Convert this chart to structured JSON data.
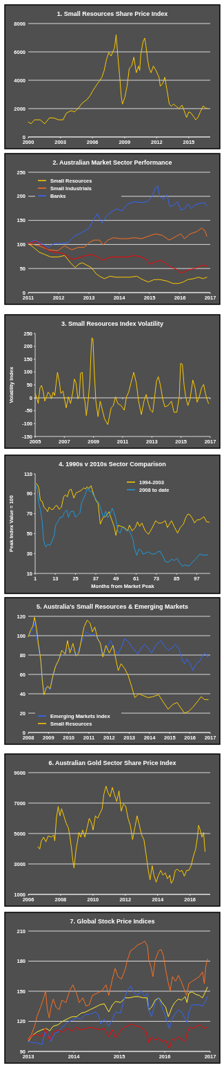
{
  "chart_data": [
    {
      "type": "line",
      "title": "1. Small Resources Share Price Index",
      "xlim": [
        2000,
        2017
      ],
      "xticks": [
        2000,
        2003,
        2006,
        2009,
        2012,
        2015
      ],
      "ylim": [
        0,
        8000
      ],
      "yticks": [
        0,
        2000,
        4000,
        6000,
        8000
      ],
      "grid": "y",
      "series": [
        {
          "color": "#ffcc00",
          "x": [
            2000,
            2000.26,
            2000.58,
            2001.11,
            2001.54,
            2001.97,
            2002.39,
            2002.82,
            2003.25,
            2003.57,
            2004,
            2004.32,
            2004.64,
            2005.06,
            2005.49,
            2005.81,
            2006.03,
            2006.24,
            2006.45,
            2006.67,
            2006.88,
            2007.09,
            2007.31,
            2007.52,
            2007.74,
            2007.95,
            2008.06,
            2008.21,
            2008.38,
            2008.53,
            2008.7,
            2008.8,
            2009.02,
            2009.23,
            2009.44,
            2009.66,
            2009.87,
            2010.09,
            2010.3,
            2010.41,
            2010.51,
            2010.73,
            2010.88,
            2011,
            2011.15,
            2011.3,
            2011.47,
            2011.69,
            2011.94,
            2012.22,
            2012.33,
            2012.54,
            2012.76,
            2012.97,
            2013.18,
            2013.35,
            2013.57,
            2013.82,
            2014.08,
            2014.36,
            2014.57,
            2014.79,
            2015,
            2015.21,
            2015.43,
            2015.64,
            2015.85,
            2016.07,
            2016.35,
            2016.5,
            2016.71
          ],
          "values": [
            1060,
            930,
            1210,
            1210,
            930,
            1340,
            1340,
            1210,
            1210,
            1690,
            1850,
            1770,
            2000,
            2400,
            2630,
            2950,
            3260,
            3500,
            3740,
            3970,
            4210,
            4680,
            5470,
            5950,
            5710,
            6100,
            6260,
            7210,
            5630,
            4370,
            2790,
            2320,
            2790,
            3580,
            4840,
            5000,
            5630,
            4530,
            5000,
            4680,
            5790,
            6730,
            6970,
            6420,
            5470,
            4840,
            4530,
            5000,
            4680,
            4210,
            3580,
            3740,
            4210,
            3260,
            2320,
            2160,
            2320,
            2160,
            2000,
            2240,
            1850,
            1370,
            1770,
            1690,
            1450,
            1210,
            1370,
            1770,
            2190,
            2080,
            2000
          ]
        }
      ]
    },
    {
      "type": "line",
      "title": "2. Australian Market Sector Performance",
      "xlim": [
        2011,
        2017
      ],
      "xticks": [
        2011,
        2012,
        2013,
        2014,
        2015,
        2016,
        2017
      ],
      "ylim": [
        0,
        250
      ],
      "yticks": [
        0,
        50,
        100,
        150,
        200,
        250
      ],
      "grid": "y",
      "legend": "top left",
      "series": [
        {
          "name": "Small Resources",
          "color": "#ffcc00",
          "x": [
            2011,
            2011.17,
            2011.36,
            2011.55,
            2011.74,
            2011.97,
            2012.2,
            2012.39,
            2012.55,
            2012.66,
            2012.78,
            2012.93,
            2013.08,
            2013.24,
            2013.35,
            2013.51,
            2013.7,
            2013.89,
            2014.12,
            2014.35,
            2014.58,
            2014.77,
            2014.96,
            2015.15,
            2015.34,
            2015.57,
            2015.77,
            2015.96,
            2016.11,
            2016.26,
            2016.46,
            2016.61,
            2016.76,
            2016.89
          ],
          "values": [
            102,
            94,
            84,
            79,
            74,
            74,
            77,
            62,
            52,
            59,
            62,
            57,
            52,
            39,
            34,
            29,
            34,
            32,
            32,
            32,
            34,
            27,
            22,
            27,
            27,
            24,
            19,
            19,
            22,
            27,
            29,
            32,
            29,
            32
          ]
        },
        {
          "name": "Small Industrials",
          "color": "#ff7020",
          "x": [
            2011,
            2011.36,
            2011.67,
            2011.97,
            2012.2,
            2012.43,
            2012.66,
            2012.85,
            2013.01,
            2013.16,
            2013.35,
            2013.47,
            2013.62,
            2013.81,
            2014.04,
            2014.27,
            2014.5,
            2014.73,
            2014.96,
            2015.19,
            2015.42,
            2015.65,
            2015.88,
            2016.03,
            2016.15,
            2016.34,
            2016.57,
            2016.72,
            2016.82,
            2016.89
          ],
          "values": [
            102,
            97,
            89,
            87,
            97,
            89,
            94,
            94,
            104,
            109,
            109,
            99,
            109,
            114,
            112,
            112,
            114,
            112,
            117,
            122,
            119,
            109,
            117,
            122,
            112,
            122,
            127,
            134,
            129,
            117
          ]
        },
        {
          "name": "Banks",
          "color": "#3366ff",
          "x": [
            2011,
            2011.21,
            2011.44,
            2011.67,
            2011.86,
            2012.09,
            2012.32,
            2012.51,
            2012.74,
            2012.89,
            2013.01,
            2013.16,
            2013.28,
            2013.35,
            2013.43,
            2013.58,
            2013.77,
            2013.93,
            2014.08,
            2014.27,
            2014.5,
            2014.73,
            2014.92,
            2015.08,
            2015.19,
            2015.27,
            2015.34,
            2015.46,
            2015.57,
            2015.67,
            2015.8,
            2015.92,
            2016.03,
            2016.15,
            2016.26,
            2016.38,
            2016.49,
            2016.65,
            2016.8,
            2016.89
          ],
          "values": [
            102,
            109,
            102,
            94,
            102,
            102,
            104,
            117,
            124,
            129,
            134,
            152,
            164,
            154,
            144,
            159,
            169,
            174,
            169,
            184,
            189,
            187,
            189,
            199,
            217,
            222,
            199,
            194,
            204,
            179,
            182,
            189,
            172,
            174,
            184,
            174,
            182,
            185,
            187,
            180
          ]
        },
        {
          "color": "#ff0000",
          "x": [
            2011,
            2011.25,
            2011.44,
            2011.67,
            2011.86,
            2012.09,
            2012.28,
            2012.43,
            2012.66,
            2012.89,
            2013.12,
            2013.28,
            2013.47,
            2013.62,
            2013.81,
            2014.04,
            2014.27,
            2014.5,
            2014.73,
            2014.89,
            2015,
            2015.19,
            2015.38,
            2015.57,
            2015.73,
            2015.88,
            2016,
            2016.11,
            2016.26,
            2016.42,
            2016.57,
            2016.76,
            2016.89
          ],
          "values": [
            102,
            107,
            99,
            87,
            84,
            82,
            77,
            69,
            72,
            77,
            79,
            74,
            67,
            72,
            74,
            74,
            74,
            77,
            74,
            69,
            59,
            64,
            67,
            59,
            52,
            49,
            42,
            42,
            47,
            49,
            52,
            57,
            55
          ]
        }
      ]
    },
    {
      "type": "line",
      "title": "3. Small Resources Index Volatility",
      "ylabel": "Volatility Index",
      "xlim": [
        2005,
        2017
      ],
      "xticks": [
        2005,
        2007,
        2009,
        2011,
        2013,
        2015,
        2017
      ],
      "ylim": [
        -150,
        250
      ],
      "yticks": [
        -150,
        -100,
        -50,
        0,
        50,
        100,
        150,
        200,
        250
      ],
      "ref_lines": [
        {
          "axis": "y",
          "value": 0,
          "color": "#ffffff"
        }
      ],
      "series": [
        {
          "color": "#ffcc00",
          "x": [
            2005,
            2005.11,
            2005.21,
            2005.33,
            2005.44,
            2005.56,
            2005.66,
            2005.78,
            2005.89,
            2006.01,
            2006.11,
            2006.23,
            2006.34,
            2006.44,
            2006.53,
            2006.65,
            2006.76,
            2006.91,
            2007.01,
            2007.13,
            2007.28,
            2007.43,
            2007.58,
            2007.69,
            2007.81,
            2007.93,
            2008.03,
            2008.11,
            2008.23,
            2008.33,
            2008.41,
            2008.51,
            2008.63,
            2008.75,
            2008.83,
            2008.89,
            2008.96,
            2009.05,
            2009.16,
            2009.31,
            2009.46,
            2009.61,
            2009.76,
            2009.98,
            2010.21,
            2010.36,
            2010.51,
            2010.66,
            2010.89,
            2011.11,
            2011.26,
            2011.41,
            2011.56,
            2011.76,
            2011.94,
            2012.09,
            2012.28,
            2012.46,
            2012.61,
            2012.76,
            2012.91,
            2013.06,
            2013.21,
            2013.32,
            2013.44,
            2013.59,
            2013.74,
            2013.89,
            2014.11,
            2014.34,
            2014.52,
            2014.71,
            2014.88,
            2014.97,
            2015.09,
            2015.21,
            2015.32,
            2015.47,
            2015.62,
            2015.81,
            2015.96,
            2016.1,
            2016.25,
            2016.41,
            2016.55,
            2016.67,
            2016.82,
            2016.89
          ],
          "values": [
            17,
            0,
            -22,
            39,
            48,
            22,
            -13,
            4,
            22,
            13,
            -4,
            22,
            9,
            56,
            99,
            65,
            17,
            26,
            -4,
            -39,
            4,
            -22,
            22,
            73,
            56,
            -4,
            9,
            95,
            99,
            4,
            -13,
            -69,
            -13,
            65,
            177,
            233,
            229,
            108,
            -13,
            -73,
            -13,
            -48,
            -82,
            -104,
            -39,
            -30,
            4,
            -22,
            -30,
            -48,
            4,
            22,
            56,
            99,
            56,
            -13,
            -65,
            -13,
            13,
            -22,
            -48,
            -56,
            13,
            65,
            82,
            48,
            -4,
            -35,
            -30,
            -13,
            -56,
            -56,
            4,
            134,
            130,
            48,
            4,
            -30,
            -4,
            69,
            39,
            -17,
            4,
            39,
            52,
            17,
            -13,
            -22
          ]
        }
      ]
    },
    {
      "type": "line",
      "title": "4. 1990s v 2010s Sector Comparison",
      "xlabel": "Months from Market Peak",
      "ylabel": "Peak Index Value = 100",
      "xlim": [
        1,
        105
      ],
      "xticks": [
        1,
        13,
        25,
        37,
        49,
        61,
        73,
        85,
        97
      ],
      "ylim": [
        10,
        110
      ],
      "yticks": [
        10,
        30,
        50,
        70,
        90,
        110
      ],
      "legend": "top right",
      "series": [
        {
          "name": "1994-2003",
          "color": "#ffcc00",
          "x": [
            1,
            2.3,
            3.2,
            4.1,
            5.2,
            6.2,
            7.5,
            8.4,
            9.3,
            10.6,
            11.7,
            13,
            14,
            15.3,
            16.6,
            17.9,
            19,
            20.1,
            21.3,
            22.4,
            24,
            25.3,
            26.6,
            28.6,
            29.9,
            30.9,
            31.8,
            33.1,
            34.2,
            35.8,
            37.1,
            38.4,
            39.7,
            41.4,
            42.9,
            44.9,
            46.2,
            47.9,
            49,
            50.3,
            52,
            54,
            55.9,
            57,
            58.6,
            60.5,
            61.8,
            63.1,
            64.4,
            66.4,
            68.3,
            70.3,
            72.6,
            74.2,
            76.1,
            78.3,
            79.6,
            82,
            83.9,
            85.6,
            87.2,
            89.1,
            90.5,
            91.8,
            93.1,
            94.4,
            95.7,
            97,
            98.9,
            101.3,
            102.8,
            104.4
          ],
          "values": [
            100.4,
            99.3,
            95.9,
            83.4,
            82.3,
            76.6,
            74.3,
            72.1,
            76.6,
            74.3,
            74.3,
            77.7,
            78.2,
            74.3,
            76.6,
            86.8,
            89,
            86.8,
            93.6,
            94.5,
            85.6,
            90.9,
            91.8,
            93.6,
            95.9,
            94.7,
            97,
            95.4,
            98.2,
            89,
            83.4,
            80,
            59.5,
            66.3,
            67.2,
            72,
            65.2,
            57.2,
            48.1,
            58.4,
            57.2,
            56.1,
            52.7,
            58.4,
            52.7,
            56.1,
            61.8,
            57.2,
            60.6,
            52.7,
            49.3,
            55,
            62.9,
            60.6,
            60.6,
            62.9,
            56.1,
            62.9,
            56.1,
            50.4,
            56.1,
            59.5,
            66.3,
            69.7,
            68.6,
            65.2,
            60.6,
            63.6,
            64,
            67,
            61.8,
            61.4
          ]
        },
        {
          "name": "2008 to date",
          "color": "#1e9be0",
          "x": [
            1,
            2.3,
            3.2,
            4.1,
            5.2,
            6,
            6.7,
            7.5,
            8.6,
            9.7,
            11,
            12.3,
            13.2,
            14.5,
            15.8,
            17.1,
            18.4,
            19.8,
            20.8,
            22.1,
            23.7,
            25,
            26.3,
            27.6,
            28.6,
            29.9,
            31.2,
            32.3,
            33.2,
            34.5,
            35.8,
            37.5,
            38.8,
            40.3,
            41.6,
            42.9,
            44.2,
            45.5,
            46.8,
            48.1,
            49,
            50.1,
            51.4,
            52.7,
            54,
            55.3,
            56.6,
            57.9,
            59.2,
            60.1,
            61.4,
            62.5,
            63.8,
            65.1,
            66.4,
            68.3,
            70.3,
            72.2,
            73.9,
            75.2,
            76.8,
            78.3,
            80,
            82,
            83.9,
            85.2,
            86.9,
            88.5,
            89.8,
            91.1,
            92.4,
            94.4,
            96.1,
            97.4,
            98.7,
            100.2,
            102.2,
            103.5
          ],
          "values": [
            100.4,
            93.6,
            79.9,
            74.3,
            61.8,
            43.5,
            39,
            36.7,
            39.5,
            37.9,
            42.4,
            48.1,
            58.4,
            61.8,
            66.3,
            66.3,
            71.3,
            73.6,
            66.3,
            72,
            72.6,
            66.3,
            68.6,
            70.9,
            81.1,
            85.6,
            91.3,
            96.3,
            92.5,
            92.5,
            87.9,
            83.4,
            81.1,
            73.1,
            65.9,
            72.6,
            65.9,
            69.7,
            75.4,
            69.7,
            64,
            52.7,
            50.4,
            56.1,
            55,
            52.7,
            53.8,
            49.3,
            43.5,
            34.4,
            28,
            34.4,
            33.3,
            29.4,
            30.3,
            31.7,
            29.4,
            29.8,
            31.7,
            32.2,
            27.6,
            21.9,
            21.2,
            24.1,
            23,
            25.3,
            20.7,
            17.3,
            18.5,
            18,
            17.3,
            21.2,
            24.1,
            26.4,
            29.4,
            28.7,
            28.3,
            28.7
          ]
        }
      ]
    },
    {
      "type": "line",
      "title": "5. Australia's Small Resources & Emerging Markets",
      "xlim": [
        2008,
        2017
      ],
      "xticks": [
        2008,
        2009,
        2010,
        2011,
        2012,
        2013,
        2014,
        2015,
        2016,
        2017
      ],
      "ylim": [
        0,
        120
      ],
      "yticks": [
        0,
        20,
        40,
        60,
        80,
        100,
        120
      ],
      "grid": "y",
      "legend": "bottom left",
      "series": [
        {
          "name": "Emerging Markets Index",
          "color": "#3366ff",
          "x": [
            2008,
            2008.17,
            2008.31,
            2008.47,
            2008.62,
            2008.76,
            2008.93,
            2009.08,
            2009.22,
            2009.4,
            2009.57,
            2009.8,
            2009.98,
            2010.21,
            2010.38,
            2010.62,
            2010.85,
            2011.08,
            2011.31,
            2011.55,
            2011.72,
            2011.87,
            2012.07,
            2012.24,
            2012.42,
            2012.59,
            2012.77,
            2012.94,
            2013.17,
            2013.41,
            2013.58,
            2013.76,
            2013.93,
            2014.1,
            2014.34,
            2014.57,
            2014.74,
            2014.92,
            2015.09,
            2015.27,
            2015.44,
            2015.62,
            2015.73,
            2015.85,
            2016.02,
            2016.14,
            2016.31,
            2016.49,
            2016.66,
            2016.8,
            2016.9
          ],
          "values": [
            99,
            104,
            113,
            92,
            73,
            45,
            47,
            44,
            57,
            71,
            78,
            82,
            87,
            85,
            80,
            92,
            104,
            101,
            101,
            92,
            80,
            86,
            95,
            87,
            81,
            87,
            97,
            94,
            87,
            81,
            87,
            91,
            87,
            82,
            91,
            95,
            89,
            85,
            87,
            91,
            87,
            75,
            71,
            76,
            71,
            64,
            71,
            74,
            81,
            81,
            77
          ]
        },
        {
          "name": "Small Resources",
          "color": "#ffcc00",
          "x": [
            2008,
            2008.12,
            2008.23,
            2008.31,
            2008.41,
            2008.5,
            2008.62,
            2008.7,
            2008.78,
            2008.87,
            2008.97,
            2009.08,
            2009.2,
            2009.34,
            2009.51,
            2009.66,
            2009.83,
            2009.94,
            2010.06,
            2010.21,
            2010.36,
            2010.5,
            2010.62,
            2010.76,
            2010.91,
            2011.06,
            2011.17,
            2011.29,
            2011.43,
            2011.57,
            2011.69,
            2011.84,
            2012.01,
            2012.19,
            2012.34,
            2012.45,
            2012.59,
            2012.77,
            2012.94,
            2013.12,
            2013.27,
            2013.47,
            2013.7,
            2013.93,
            2014.16,
            2014.45,
            2014.66,
            2014.92,
            2015.15,
            2015.36,
            2015.56,
            2015.73,
            2015.94,
            2016.14,
            2016.37,
            2016.55,
            2016.72,
            2016.9
          ],
          "values": [
            99,
            106,
            110,
            119,
            108,
            92,
            75,
            52,
            39,
            45,
            48,
            45,
            57,
            68,
            75,
            85,
            81,
            95,
            82,
            92,
            79,
            82,
            95,
            109,
            116,
            113,
            104,
            109,
            97,
            92,
            78,
            90,
            82,
            90,
            75,
            64,
            71,
            66,
            59,
            47,
            36,
            40,
            38,
            36,
            37,
            39,
            32,
            24,
            29,
            31,
            25,
            20,
            22,
            26,
            32,
            37,
            34,
            34
          ]
        }
      ]
    },
    {
      "type": "line",
      "title": "6. Australian Gold Sector Share Price Index",
      "xlim": [
        2006,
        2017.25
      ],
      "xticks": [
        2006,
        2008,
        2010,
        2012,
        2014,
        2016
      ],
      "ylim": [
        1000,
        9000
      ],
      "yticks": [
        1000,
        3000,
        5000,
        7000,
        9000
      ],
      "grid": "y",
      "series": [
        {
          "color": "#ffcc00",
          "x": [
            2006.6,
            2006.71,
            2006.81,
            2006.95,
            2007.09,
            2007.23,
            2007.43,
            2007.57,
            2007.64,
            2007.74,
            2007.85,
            2007.96,
            2008.06,
            2008.2,
            2008.34,
            2008.48,
            2008.58,
            2008.66,
            2008.76,
            2008.83,
            2008.94,
            2009.04,
            2009.13,
            2009.25,
            2009.36,
            2009.5,
            2009.64,
            2009.77,
            2009.91,
            2010.01,
            2010.15,
            2010.29,
            2010.43,
            2010.57,
            2010.67,
            2010.81,
            2010.92,
            2011.06,
            2011.2,
            2011.33,
            2011.47,
            2011.61,
            2011.75,
            2011.89,
            2012.03,
            2012.17,
            2012.31,
            2012.45,
            2012.59,
            2012.73,
            2012.87,
            2013.01,
            2013.15,
            2013.28,
            2013.42,
            2013.53,
            2013.66,
            2013.77,
            2013.91,
            2014.05,
            2014.19,
            2014.33,
            2014.47,
            2014.61,
            2014.75,
            2014.84,
            2014.96,
            2015.09,
            2015.23,
            2015.37,
            2015.51,
            2015.65,
            2015.79,
            2015.93,
            2016.07,
            2016.21,
            2016.35,
            2016.46,
            2016.53,
            2016.63,
            2016.74,
            2016.84,
            2016.93
          ],
          "values": [
            4130,
            3980,
            4520,
            4760,
            4450,
            4840,
            4760,
            4910,
            4520,
            6000,
            6780,
            6160,
            6630,
            6160,
            5690,
            5380,
            4760,
            4130,
            3200,
            2730,
            3820,
            4450,
            5070,
            4760,
            5230,
            4760,
            5380,
            6000,
            5690,
            5230,
            6160,
            6000,
            6320,
            6630,
            7560,
            8110,
            7720,
            7410,
            8030,
            7560,
            7100,
            7800,
            6470,
            6940,
            6780,
            6000,
            5540,
            4600,
            5380,
            6160,
            5540,
            4910,
            4600,
            3670,
            2580,
            1950,
            2890,
            2260,
            1800,
            2260,
            2580,
            2260,
            2420,
            2030,
            2260,
            1720,
            1950,
            2580,
            2650,
            2500,
            2580,
            2190,
            2580,
            2580,
            2890,
            3510,
            3980,
            4760,
            5540,
            5230,
            4760,
            5070,
            3820
          ]
        }
      ]
    },
    {
      "type": "line",
      "title": "7. Global Stock Price Indices",
      "xlim": [
        2013,
        2017
      ],
      "xticks": [
        2013,
        2014,
        2015,
        2016,
        2017
      ],
      "ylim": [
        90,
        210
      ],
      "yticks": [
        90,
        120,
        150,
        180,
        210
      ],
      "grid": "y",
      "series": [
        {
          "color": "#ff7020",
          "x": [
            2013,
            2013.07,
            2013.14,
            2013.19,
            2013.27,
            2013.34,
            2013.38,
            2013.42,
            2013.46,
            2013.51,
            2013.55,
            2013.61,
            2013.68,
            2013.74,
            2013.83,
            2013.91,
            2013.98,
            2014.06,
            2014.12,
            2014.2,
            2014.27,
            2014.34,
            2014.41,
            2014.52,
            2014.62,
            2014.71,
            2014.77,
            2014.85,
            2014.91,
            2014.97,
            2015.05,
            2015.13,
            2015.18,
            2015.25,
            2015.33,
            2015.41,
            2015.48,
            2015.56,
            2015.62,
            2015.65,
            2015.7,
            2015.74,
            2015.79,
            2015.87,
            2015.92,
            2015.97,
            2016.02,
            2016.07,
            2016.12,
            2016.17,
            2016.24,
            2016.3,
            2016.36,
            2016.42,
            2016.48,
            2016.53,
            2016.6,
            2016.68,
            2016.76,
            2016.83,
            2016.87,
            2016.9,
            2016.94
          ],
          "values": [
            102.2,
            106.9,
            115.2,
            124.6,
            134,
            143.4,
            150.5,
            131.6,
            123.4,
            136.4,
            142.2,
            134,
            131.6,
            141.1,
            138.7,
            150.5,
            156.4,
            148.1,
            138.7,
            143.4,
            135.2,
            136.4,
            145.8,
            148.1,
            150.5,
            156.4,
            145.8,
            162.2,
            172.8,
            164.6,
            162.2,
            171.6,
            181.1,
            190.5,
            192.8,
            196.4,
            197.5,
            199.9,
            195.2,
            181.1,
            174,
            164.6,
            181.1,
            190.5,
            191.6,
            185.8,
            171.6,
            159.9,
            150.5,
            164.6,
            159.9,
            165.8,
            159.9,
            152.8,
            145.8,
            157.5,
            159.9,
            162.2,
            164.6,
            169.3,
            157.5,
            174,
            182.2
          ]
        },
        {
          "color": "#ffee33",
          "x": [
            2013,
            2013.09,
            2013.19,
            2013.3,
            2013.4,
            2013.47,
            2013.55,
            2013.65,
            2013.75,
            2013.85,
            2013.96,
            2014.06,
            2014.16,
            2014.26,
            2014.36,
            2014.47,
            2014.57,
            2014.67,
            2014.77,
            2014.85,
            2014.92,
            2015.03,
            2015.13,
            2015.23,
            2015.33,
            2015.43,
            2015.53,
            2015.61,
            2015.65,
            2015.71,
            2015.79,
            2015.87,
            2015.94,
            2016.02,
            2016.08,
            2016.16,
            2016.22,
            2016.3,
            2016.37,
            2016.45,
            2016.49,
            2016.53,
            2016.6,
            2016.68,
            2016.76,
            2016.83,
            2016.88,
            2016.94
          ],
          "values": [
            99.9,
            105.8,
            109.3,
            111.6,
            112.8,
            110.5,
            115.2,
            116.4,
            119.9,
            122.2,
            124.6,
            124.6,
            128.1,
            129.3,
            131.6,
            134,
            136.4,
            137.5,
            129.3,
            136.4,
            139.9,
            138.7,
            143.4,
            143.4,
            144.6,
            144.6,
            143.4,
            143.4,
            131.6,
            134,
            141.1,
            143.4,
            138.7,
            134,
            124.6,
            134,
            138.7,
            142.2,
            141.1,
            144.6,
            138.7,
            148.1,
            149.3,
            146.9,
            145.8,
            143.4,
            148.1,
            154
          ]
        },
        {
          "color": "#3366ff",
          "x": [
            2013,
            2013.09,
            2013.19,
            2013.3,
            2013.37,
            2013.45,
            2013.5,
            2013.58,
            2013.65,
            2013.75,
            2013.85,
            2013.96,
            2014.06,
            2014.16,
            2014.26,
            2014.36,
            2014.47,
            2014.54,
            2014.59,
            2014.67,
            2014.77,
            2014.85,
            2014.92,
            2015.03,
            2015.1,
            2015.18,
            2015.25,
            2015.33,
            2015.41,
            2015.48,
            2015.56,
            2015.62,
            2015.65,
            2015.71,
            2015.79,
            2015.87,
            2015.94,
            2016.02,
            2016.1,
            2016.16,
            2016.22,
            2016.3,
            2016.37,
            2016.45,
            2016.49,
            2016.53,
            2016.6,
            2016.68,
            2016.76,
            2016.83,
            2016.88,
            2016.94
          ],
          "values": [
            99.9,
            98.7,
            98.7,
            96.4,
            109.3,
            105.8,
            99.9,
            108.1,
            109.3,
            114,
            118.7,
            121.1,
            123.4,
            122.2,
            126.9,
            126.9,
            129.3,
            126.9,
            117.5,
            122.2,
            115.2,
            122.2,
            129.3,
            128.1,
            141.1,
            150.5,
            155.2,
            148.1,
            145.8,
            150.5,
            144.6,
            148.1,
            131.6,
            124.6,
            138.7,
            143.4,
            134,
            124.6,
            112.8,
            122.2,
            126.9,
            131.6,
            129.3,
            122.2,
            118.7,
            129.3,
            136.4,
            136.4,
            136.4,
            135.2,
            138.7,
            144.6
          ]
        },
        {
          "color": "#ff0000",
          "x": [
            2013,
            2013.09,
            2013.19,
            2013.3,
            2013.37,
            2013.47,
            2013.55,
            2013.65,
            2013.75,
            2013.85,
            2013.96,
            2014.06,
            2014.16,
            2014.26,
            2014.36,
            2014.47,
            2014.57,
            2014.67,
            2014.77,
            2014.85,
            2014.92,
            2015.03,
            2015.1,
            2015.18,
            2015.28,
            2015.38,
            2015.48,
            2015.59,
            2015.65,
            2015.71,
            2015.79,
            2015.87,
            2015.94,
            2016.02,
            2016.1,
            2016.16,
            2016.22,
            2016.3,
            2016.37,
            2016.45,
            2016.5,
            2016.55,
            2016.63,
            2016.7,
            2016.78,
            2016.86,
            2016.94
          ],
          "values": [
            101.1,
            105.8,
            106.9,
            104.6,
            112.8,
            101.1,
            109.3,
            111.6,
            109.3,
            112.8,
            110.5,
            114,
            111.6,
            112.8,
            114,
            112.8,
            111.6,
            112.8,
            104.6,
            111.6,
            103.4,
            110.5,
            114,
            115.2,
            117.5,
            115.2,
            114,
            109.3,
            98.7,
            104.6,
            101.1,
            103.4,
            99.9,
            101.1,
            92.8,
            102.2,
            101.1,
            104.6,
            102.2,
            99.9,
            109.3,
            114,
            112.8,
            115.2,
            116.4,
            112.8,
            114
          ]
        }
      ]
    }
  ]
}
